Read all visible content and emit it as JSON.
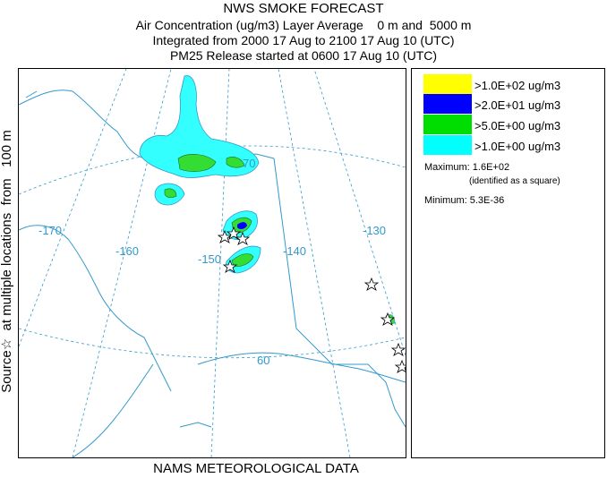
{
  "header": {
    "title": "NWS SMOKE FORECAST",
    "line2": "Air Concentration (ug/m3) Layer Average    0 m and  5000 m",
    "line3": "Integrated from 2000 17 Aug to 2100 17 Aug 10 (UTC)",
    "line4": "PM25 Release started at 0600 17 Aug 10 (UTC)"
  },
  "side_label": "Source☆  at multiple locations  from   100 m",
  "footer": "NAMS METEOROLOGICAL DATA",
  "legend": {
    "items": [
      {
        "label": ">1.0E+02 ug/m3",
        "color": "#ffff00"
      },
      {
        "label": ">2.0E+01 ug/m3",
        "color": "#0000ff"
      },
      {
        "label": ">5.0E+00 ug/m3",
        "color": "#00dd00"
      },
      {
        "label": ">1.0E+00 ug/m3",
        "color": "#00ffff"
      }
    ],
    "maximum": "Maximum: 1.6E+02",
    "maximum_note": "(identified as a square)",
    "minimum": "Minimum: 5.3E-36"
  },
  "map": {
    "grid_labels": [
      "70",
      "-170",
      "-160",
      "-150",
      "-140",
      "-130",
      "60"
    ],
    "colors": {
      "grid": "#3399cc",
      "coast": "#3399cc",
      "smoke_low": "#33ffff",
      "smoke_mid": "#33dd33",
      "smoke_high": "#0000ff"
    }
  }
}
